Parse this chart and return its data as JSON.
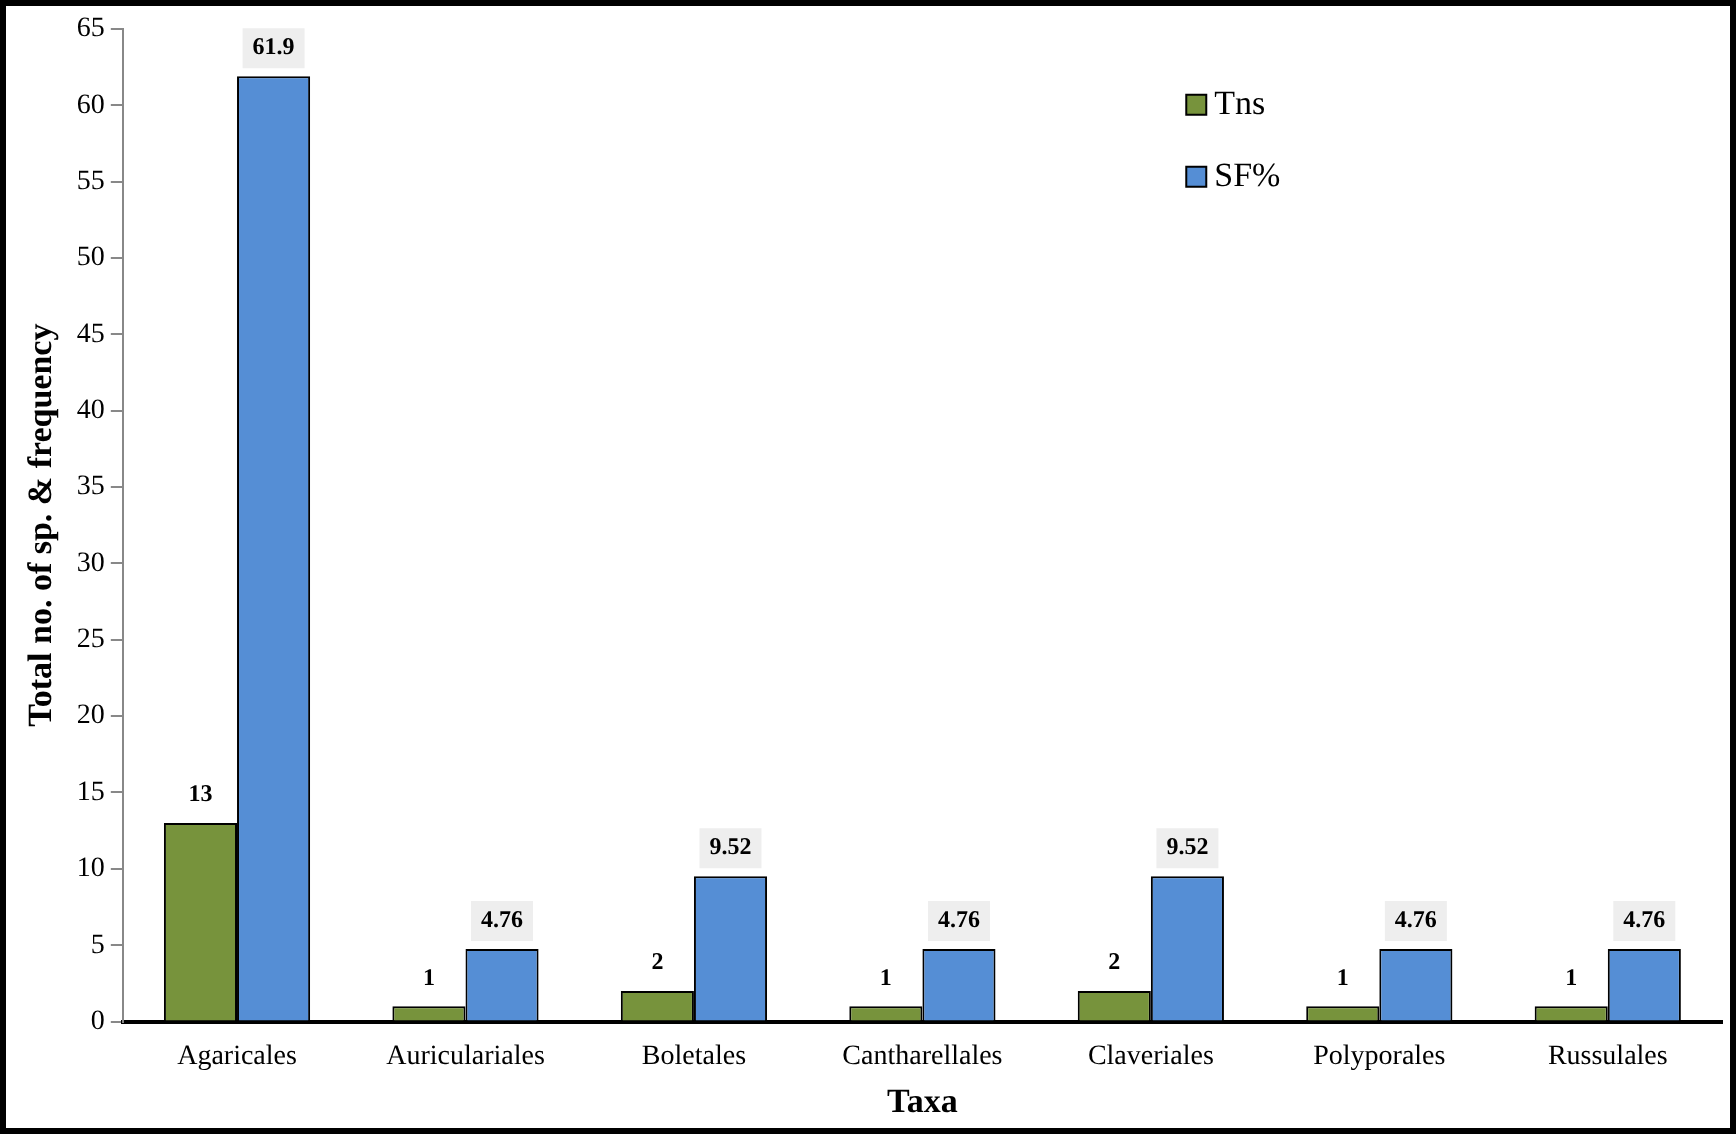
{
  "chart_data": {
    "type": "bar",
    "xlabel": "Taxa",
    "ylabel": "Total no. of sp. & frequency",
    "categories": [
      "Agaricales",
      "Auriculariales",
      "Boletales",
      "Cantharellales",
      "Claveriales",
      "Polyporales",
      "Russulales"
    ],
    "series": [
      {
        "name": "Tns",
        "color": "#77933c",
        "values": [
          13,
          1,
          2,
          1,
          2,
          1,
          1
        ]
      },
      {
        "name": "SF%",
        "color": "#558ed5",
        "values": [
          61.9,
          4.76,
          9.52,
          4.76,
          9.52,
          4.76,
          4.76
        ]
      }
    ],
    "ylim": [
      0,
      65
    ],
    "yticks": [
      0,
      5,
      10,
      15,
      20,
      25,
      30,
      35,
      40,
      45,
      50,
      55,
      60,
      65
    ],
    "data_labels": true,
    "legend": "top right",
    "grid": false
  }
}
